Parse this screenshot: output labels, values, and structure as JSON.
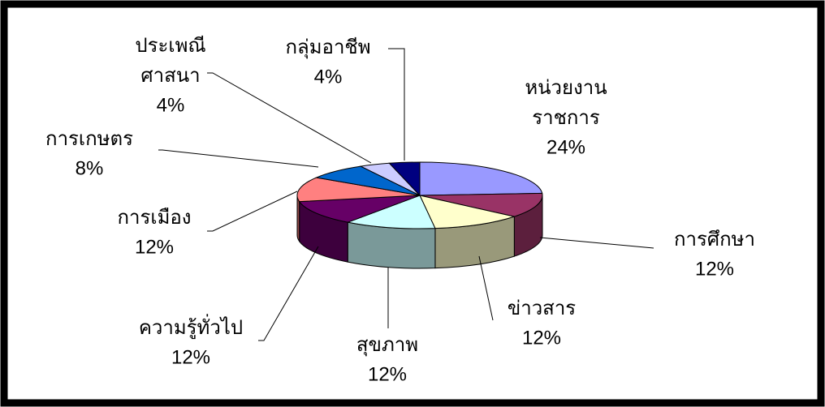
{
  "chart_data": {
    "type": "pie3d",
    "categories": [
      "หน่วยงาน\nราชการ",
      "การศึกษา",
      "ข่าวสาร",
      "สุขภาพ",
      "ความรู้ทั่วไป",
      "การเมือง",
      "การเกษตร",
      "ประเพณี\nศาสนา",
      "กลุ่มอาชีพ"
    ],
    "values": [
      24,
      12,
      12,
      12,
      12,
      12,
      8,
      4,
      4
    ],
    "value_labels": [
      "24%",
      "12%",
      "12%",
      "12%",
      "12%",
      "12%",
      "8%",
      "4%",
      "4%"
    ],
    "colors": [
      "#9999ff",
      "#993366",
      "#ffffcc",
      "#ccffff",
      "#660066",
      "#ff8080",
      "#0066cc",
      "#ccccff",
      "#000080"
    ]
  }
}
